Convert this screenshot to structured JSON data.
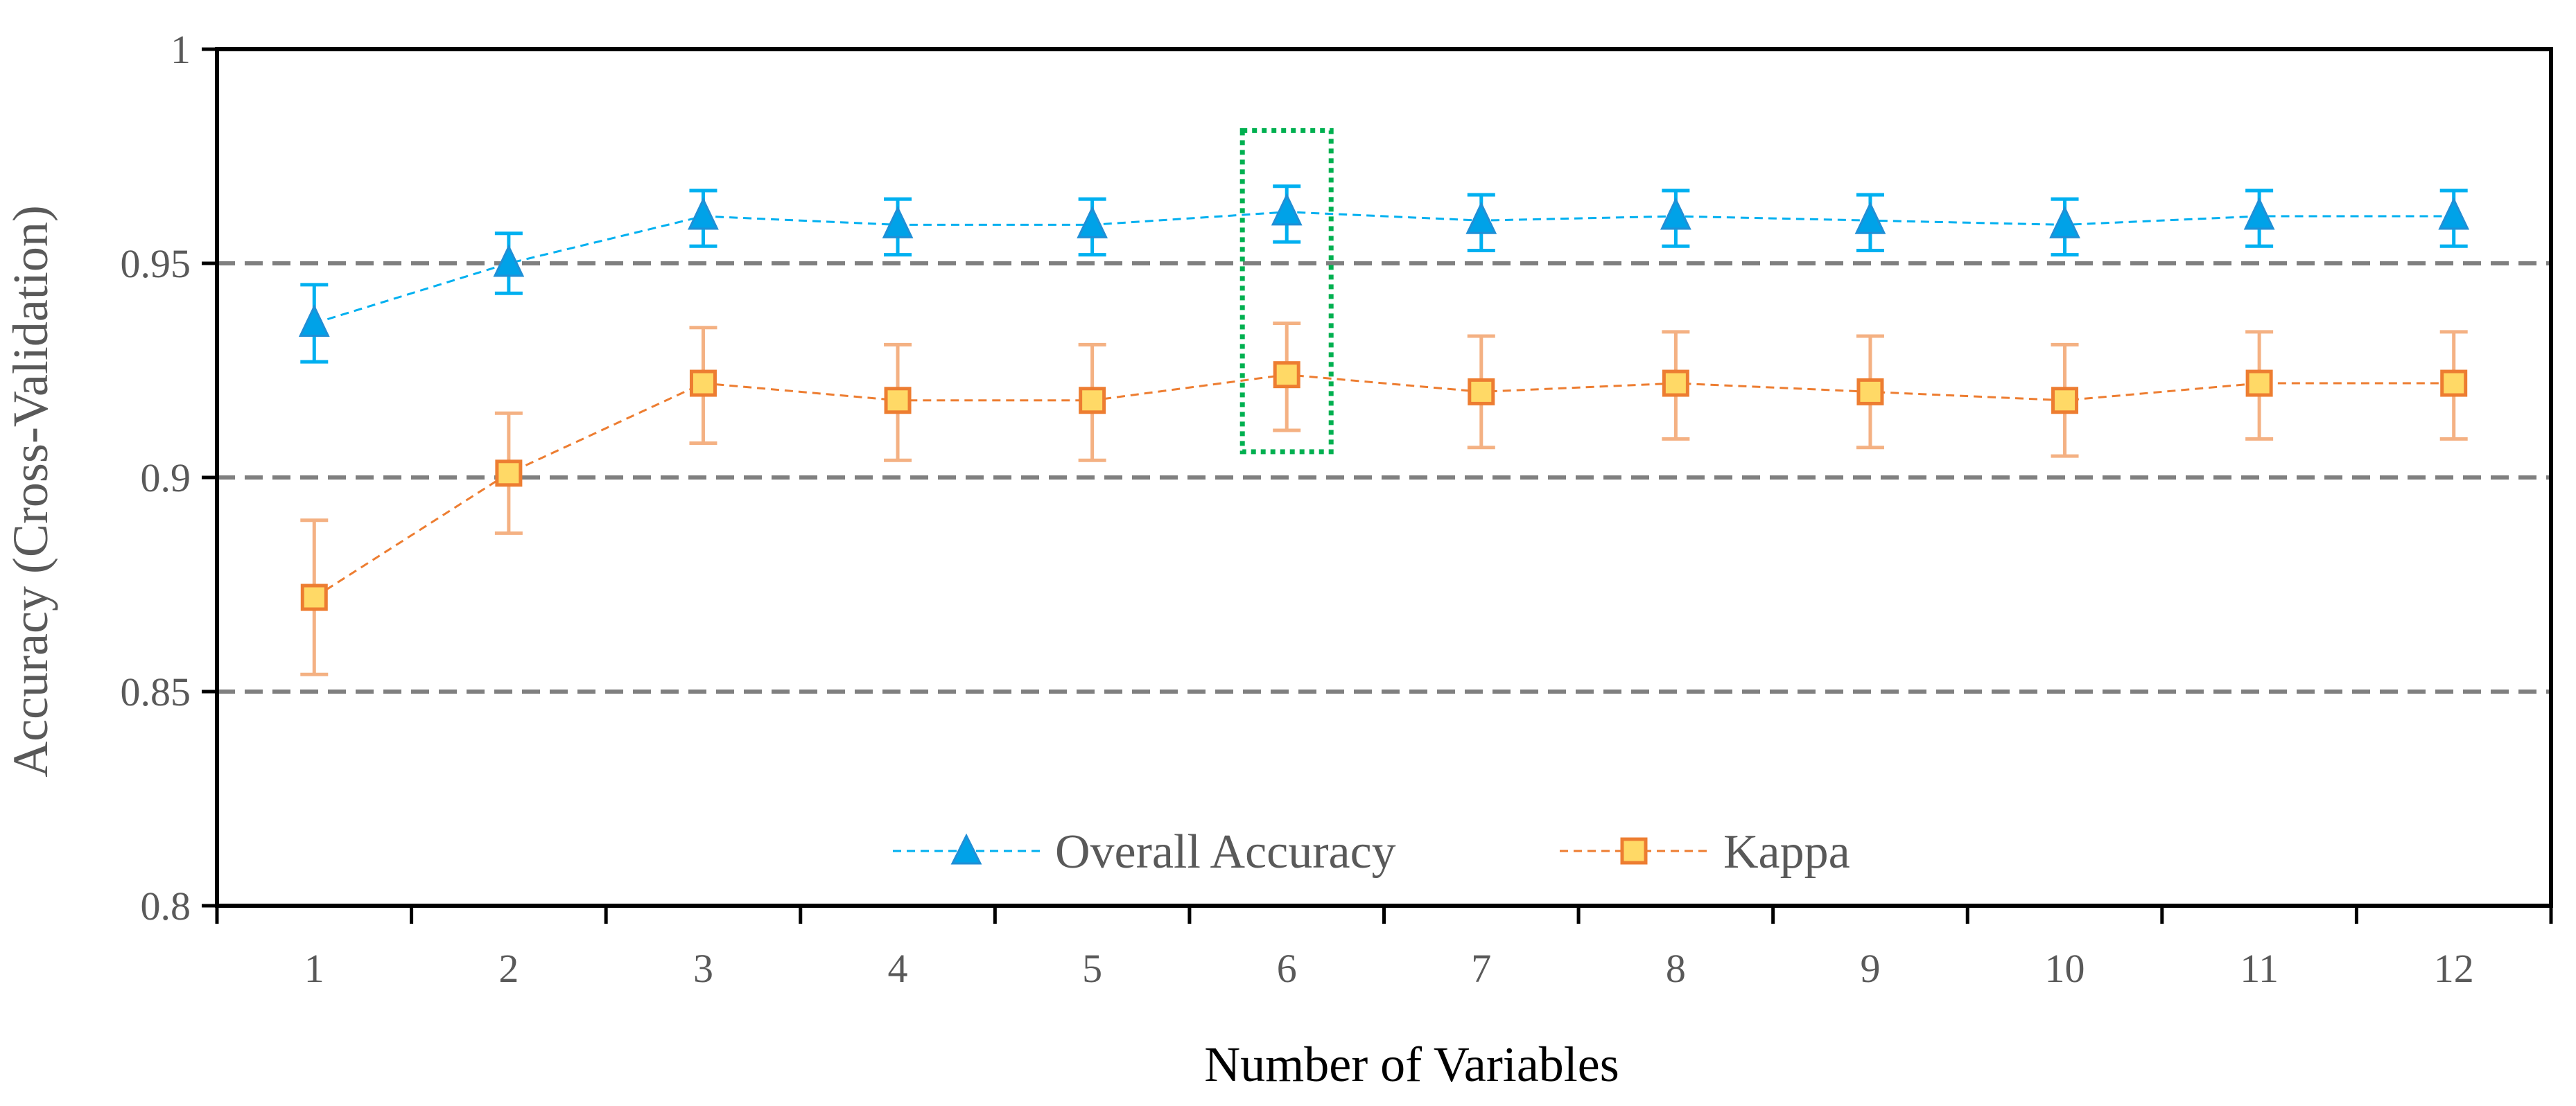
{
  "chart_data": {
    "type": "line",
    "x": [
      1,
      2,
      3,
      4,
      5,
      6,
      7,
      8,
      9,
      10,
      11,
      12
    ],
    "x_tick_labels": [
      "1",
      "2",
      "3",
      "4",
      "5",
      "6",
      "7",
      "8",
      "9",
      "10",
      "11",
      "12"
    ],
    "xlabel": "Number of Variables",
    "ylabel": "Accuracy (Cross-Validation)",
    "ylim": [
      0.8,
      1.0
    ],
    "y_ticks": [
      0.8,
      0.85,
      0.9,
      0.95,
      1.0
    ],
    "y_tick_labels": [
      "0.8",
      "0.85",
      "0.9",
      "0.95",
      "1"
    ],
    "reference_lines": [
      0.85,
      0.9,
      0.95
    ],
    "highlight_x": 6,
    "highlight_range": [
      0.906,
      0.981
    ],
    "legend_position": "bottom-center",
    "series": [
      {
        "name": "Overall Accuracy",
        "marker": "triangle",
        "color": "#00A2E8",
        "edge_color": "#1F8FD6",
        "line_color": "#00B0F0",
        "values": [
          0.936,
          0.95,
          0.961,
          0.959,
          0.959,
          0.962,
          0.96,
          0.961,
          0.96,
          0.959,
          0.961,
          0.961
        ],
        "error_upper": [
          0.945,
          0.957,
          0.967,
          0.965,
          0.965,
          0.968,
          0.966,
          0.967,
          0.966,
          0.965,
          0.967,
          0.967
        ],
        "error_lower": [
          0.927,
          0.943,
          0.954,
          0.952,
          0.952,
          0.955,
          0.953,
          0.954,
          0.953,
          0.952,
          0.954,
          0.954
        ]
      },
      {
        "name": "Kappa",
        "marker": "square",
        "color": "#FFD966",
        "edge_color": "#ED7D31",
        "line_color": "#ED7D31",
        "error_color": "#F4B183",
        "values": [
          0.872,
          0.901,
          0.922,
          0.918,
          0.918,
          0.924,
          0.92,
          0.922,
          0.92,
          0.918,
          0.922,
          0.922
        ],
        "error_upper": [
          0.89,
          0.915,
          0.935,
          0.931,
          0.931,
          0.936,
          0.933,
          0.934,
          0.933,
          0.931,
          0.934,
          0.934
        ],
        "error_lower": [
          0.854,
          0.887,
          0.908,
          0.904,
          0.904,
          0.911,
          0.907,
          0.909,
          0.907,
          0.905,
          0.909,
          0.909
        ]
      }
    ]
  }
}
